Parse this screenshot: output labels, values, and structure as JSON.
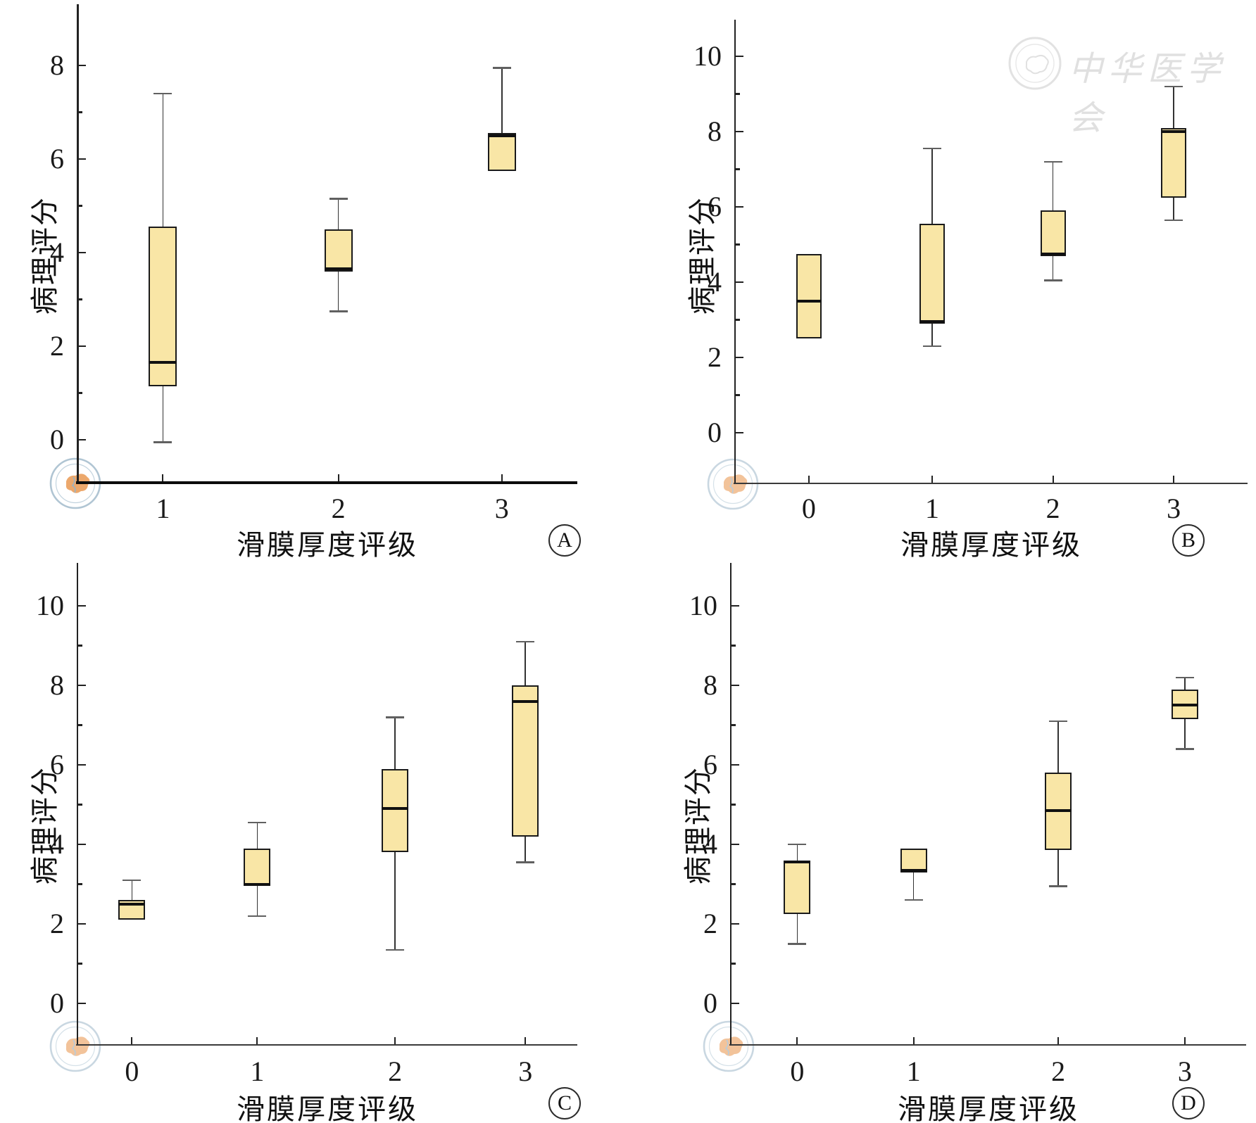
{
  "figure": {
    "background": "#ffffff",
    "box_fill": "#f9e6a6",
    "box_border": "#1a1a1a",
    "watermarks": {
      "origin_logo_name": "chinese-medical-association-emblem",
      "origin_logo_ring_color": "#9db7c9",
      "origin_logo_blob_color": "#e89348",
      "header_text": "中华医学会",
      "header_text_color": "#e0e0e0"
    }
  },
  "chart_data": [
    {
      "panel_label": "A",
      "type": "box",
      "title": "",
      "xlabel": "滑膜厚度评级",
      "ylabel": "病理评分",
      "categories": [
        "1",
        "2",
        "3"
      ],
      "yticks": [
        0,
        2,
        4,
        6,
        8
      ],
      "ylim": [
        -0.9,
        9.3
      ],
      "grid": false,
      "legend": null,
      "boxes": [
        {
          "category": "1",
          "whisker_low": -0.05,
          "q1": 1.15,
          "median": 1.65,
          "q3": 4.55,
          "whisker_high": 7.4
        },
        {
          "category": "2",
          "whisker_low": 2.75,
          "q1": 3.6,
          "median": 3.65,
          "q3": 4.5,
          "whisker_high": 5.15
        },
        {
          "category": "3",
          "whisker_low": 5.75,
          "q1": 5.75,
          "median": 6.5,
          "q3": 6.55,
          "whisker_high": 7.95
        }
      ]
    },
    {
      "panel_label": "B",
      "type": "box",
      "title": "",
      "xlabel": "滑膜厚度评级",
      "ylabel": "病理评分",
      "categories": [
        "0",
        "1",
        "2",
        "3"
      ],
      "yticks": [
        0,
        2,
        4,
        6,
        8,
        10
      ],
      "ylim": [
        -1.3,
        11.0
      ],
      "grid": false,
      "legend": null,
      "boxes": [
        {
          "category": "0",
          "whisker_low": 2.5,
          "q1": 2.5,
          "median": 3.5,
          "q3": 4.75,
          "whisker_high": 4.75
        },
        {
          "category": "1",
          "whisker_low": 2.3,
          "q1": 2.9,
          "median": 2.95,
          "q3": 5.55,
          "whisker_high": 7.55
        },
        {
          "category": "2",
          "whisker_low": 4.05,
          "q1": 4.7,
          "median": 4.75,
          "q3": 5.9,
          "whisker_high": 7.2
        },
        {
          "category": "3",
          "whisker_low": 5.65,
          "q1": 6.25,
          "median": 8.0,
          "q3": 8.1,
          "whisker_high": 9.2
        }
      ]
    },
    {
      "panel_label": "C",
      "type": "box",
      "title": "",
      "xlabel": "滑膜厚度评级",
      "ylabel": "病理评分",
      "categories": [
        "0",
        "1",
        "2",
        "3"
      ],
      "yticks": [
        0,
        2,
        4,
        6,
        8,
        10
      ],
      "ylim": [
        -1.0,
        11.1
      ],
      "grid": false,
      "legend": null,
      "boxes": [
        {
          "category": "0",
          "whisker_low": 2.1,
          "q1": 2.1,
          "median": 2.5,
          "q3": 2.6,
          "whisker_high": 3.1
        },
        {
          "category": "1",
          "whisker_low": 2.2,
          "q1": 2.95,
          "median": 3.0,
          "q3": 3.9,
          "whisker_high": 4.55
        },
        {
          "category": "2",
          "whisker_low": 1.35,
          "q1": 3.8,
          "median": 4.9,
          "q3": 5.9,
          "whisker_high": 7.2
        },
        {
          "category": "3",
          "whisker_low": 3.55,
          "q1": 4.2,
          "median": 7.6,
          "q3": 8.0,
          "whisker_high": 9.1
        }
      ]
    },
    {
      "panel_label": "D",
      "type": "box",
      "title": "",
      "xlabel": "滑膜厚度评级",
      "ylabel": "病理评分",
      "categories": [
        "0",
        "1",
        "2",
        "3"
      ],
      "yticks": [
        0,
        2,
        4,
        6,
        8,
        10
      ],
      "ylim": [
        -1.0,
        11.1
      ],
      "grid": false,
      "legend": null,
      "boxes": [
        {
          "category": "0",
          "whisker_low": 1.5,
          "q1": 2.25,
          "median": 3.55,
          "q3": 3.55,
          "whisker_high": 4.0
        },
        {
          "category": "1",
          "whisker_low": 2.6,
          "q1": 3.3,
          "median": 3.35,
          "q3": 3.9,
          "whisker_high": 3.9
        },
        {
          "category": "2",
          "whisker_low": 2.95,
          "q1": 3.85,
          "median": 4.85,
          "q3": 5.8,
          "whisker_high": 7.1
        },
        {
          "category": "3",
          "whisker_low": 6.4,
          "q1": 7.15,
          "median": 7.5,
          "q3": 7.9,
          "whisker_high": 8.2
        }
      ]
    }
  ]
}
